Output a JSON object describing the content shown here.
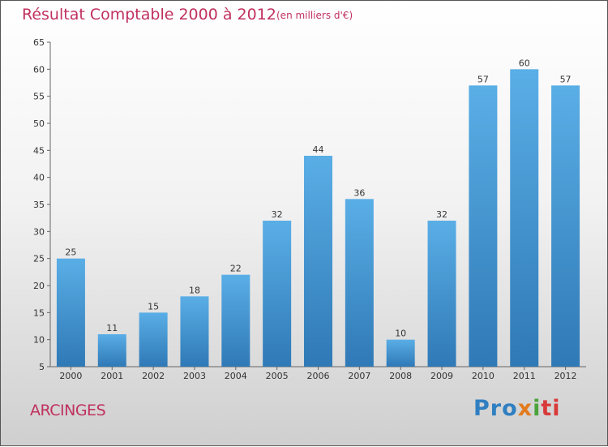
{
  "chart_data": {
    "type": "bar",
    "title": "Résultat Comptable 2000 à 2012",
    "subtitle": "(en milliers d'€)",
    "categories": [
      "2000",
      "2001",
      "2002",
      "2003",
      "2004",
      "2005",
      "2006",
      "2007",
      "2008",
      "2009",
      "2010",
      "2011",
      "2012"
    ],
    "values": [
      25,
      11,
      15,
      18,
      22,
      32,
      44,
      36,
      10,
      32,
      57,
      60,
      57
    ],
    "ylim": [
      5,
      65
    ],
    "yticks": [
      5,
      10,
      15,
      20,
      25,
      30,
      35,
      40,
      45,
      50,
      55,
      60,
      65
    ],
    "grid": false,
    "xlabel": "",
    "ylabel": "",
    "colors": {
      "bar_top": "#5aaee6",
      "bar_bottom": "#2f79b6",
      "axis": "#666666"
    }
  },
  "location": "ARCINGES",
  "logo": {
    "p1": "Pro",
    "p2": "x",
    "p3": "i",
    "p4": "ti"
  }
}
